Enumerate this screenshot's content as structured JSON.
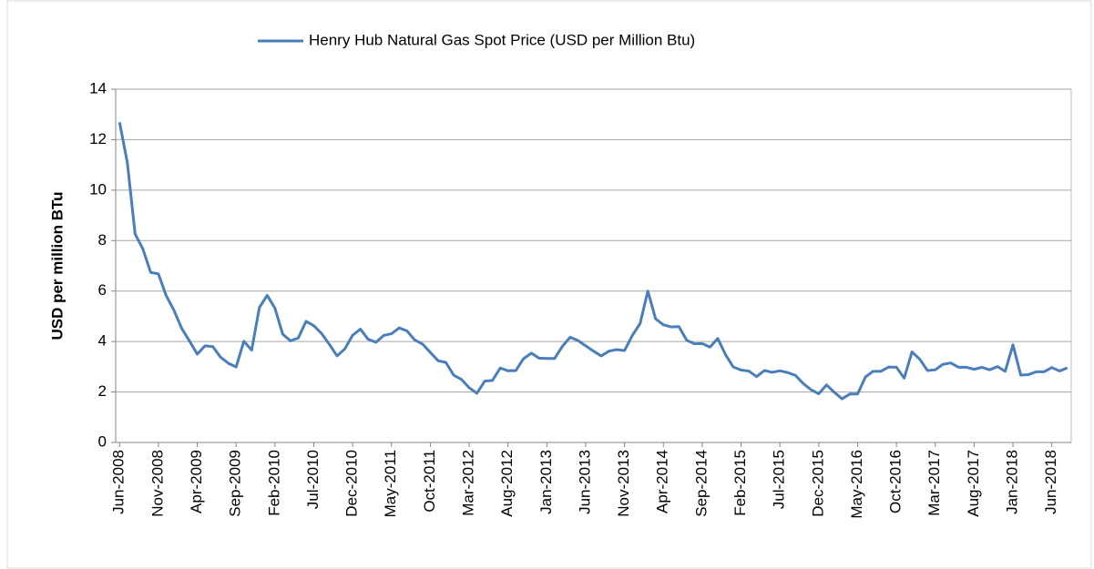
{
  "chart_data": {
    "type": "line",
    "y_label": "USD per million BTu",
    "categories": [
      "Jun-2008",
      null,
      null,
      null,
      null,
      "Nov-2008",
      null,
      null,
      null,
      null,
      "Apr-2009",
      null,
      null,
      null,
      null,
      "Sep-2009",
      null,
      null,
      null,
      null,
      "Feb-2010",
      null,
      null,
      null,
      null,
      "Jul-2010",
      null,
      null,
      null,
      null,
      "Dec-2010",
      null,
      null,
      null,
      null,
      "May-2011",
      null,
      null,
      null,
      null,
      "Oct-2011",
      null,
      null,
      null,
      null,
      "Mar-2012",
      null,
      null,
      null,
      null,
      "Aug-2012",
      null,
      null,
      null,
      null,
      "Jan-2013",
      null,
      null,
      null,
      null,
      "Jun-2013",
      null,
      null,
      null,
      null,
      "Nov-2013",
      null,
      null,
      null,
      null,
      "Apr-2014",
      null,
      null,
      null,
      null,
      "Sep-2014",
      null,
      null,
      null,
      null,
      "Feb-2015",
      null,
      null,
      null,
      null,
      "Jul-2015",
      null,
      null,
      null,
      null,
      "Dec-2015",
      null,
      null,
      null,
      null,
      "May-2016",
      null,
      null,
      null,
      null,
      "Oct-2016",
      null,
      null,
      null,
      null,
      "Mar-2017",
      null,
      null,
      null,
      null,
      "Aug-2017",
      null,
      null,
      null,
      null,
      "Jan-2018",
      null,
      null,
      null,
      null,
      "Jun-2018",
      null,
      null
    ],
    "series": [
      {
        "name": "Henry Hub Natural Gas Spot Price (USD per Million Btu)",
        "color": "#4a7ebb",
        "values": [
          12.69,
          11.09,
          8.26,
          7.67,
          6.74,
          6.68,
          5.82,
          5.24,
          4.52,
          4.02,
          3.5,
          3.83,
          3.8,
          3.38,
          3.14,
          2.99,
          4.01,
          3.66,
          5.35,
          5.83,
          5.32,
          4.29,
          4.03,
          4.14,
          4.8,
          4.63,
          4.32,
          3.89,
          3.43,
          3.71,
          4.25,
          4.49,
          4.09,
          3.97,
          4.24,
          4.31,
          4.54,
          4.42,
          4.06,
          3.9,
          3.57,
          3.24,
          3.17,
          2.67,
          2.5,
          2.17,
          1.95,
          2.43,
          2.46,
          2.95,
          2.84,
          2.85,
          3.32,
          3.54,
          3.34,
          3.33,
          3.33,
          3.81,
          4.17,
          4.04,
          3.83,
          3.62,
          3.43,
          3.62,
          3.68,
          3.64,
          4.24,
          4.71,
          6.0,
          4.9,
          4.66,
          4.58,
          4.59,
          4.05,
          3.91,
          3.92,
          3.78,
          4.12,
          3.48,
          2.99,
          2.87,
          2.83,
          2.61,
          2.85,
          2.78,
          2.84,
          2.77,
          2.66,
          2.34,
          2.09,
          1.93,
          2.28,
          1.99,
          1.73,
          1.92,
          1.92,
          2.59,
          2.82,
          2.82,
          2.99,
          2.98,
          2.55,
          3.59,
          3.3,
          2.85,
          2.88,
          3.1,
          3.15,
          2.98,
          2.98,
          2.9,
          2.98,
          2.88,
          3.01,
          2.82,
          3.87,
          2.67,
          2.69,
          2.8,
          2.8,
          2.97,
          2.83,
          2.96
        ]
      }
    ],
    "ylim": [
      0,
      14
    ],
    "yticks": [
      0,
      2,
      4,
      6,
      8,
      10,
      12,
      14
    ],
    "grid": true,
    "legend": "top"
  }
}
